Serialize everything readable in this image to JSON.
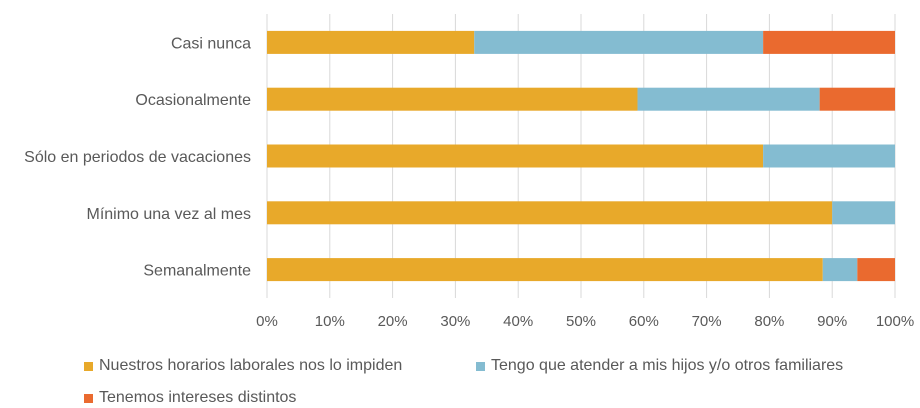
{
  "chart_data": {
    "type": "bar",
    "orientation": "horizontal",
    "stacked": true,
    "percent": true,
    "categories": [
      "Casi nunca",
      "Ocasionalmente",
      "Sólo en periodos de vacaciones",
      "Mínimo una vez al mes",
      "Semanalmente"
    ],
    "series": [
      {
        "name": "Nuestros horarios laborales nos lo impiden",
        "color": "#E8A92A",
        "values": [
          33,
          59,
          79,
          90,
          88.5
        ]
      },
      {
        "name": "Tengo que atender a mis hijos y/o otros familiares",
        "color": "#84BCD1",
        "values": [
          46,
          29,
          21,
          10,
          5.5
        ]
      },
      {
        "name": "Tenemos intereses distintos",
        "color": "#EA6A2F",
        "values": [
          21,
          12,
          0,
          0,
          6
        ]
      }
    ],
    "x_ticks": [
      "0%",
      "10%",
      "20%",
      "30%",
      "40%",
      "50%",
      "60%",
      "70%",
      "80%",
      "90%",
      "100%"
    ],
    "xlim": [
      0,
      100
    ],
    "grid": "vertical",
    "legend_position": "bottom"
  }
}
